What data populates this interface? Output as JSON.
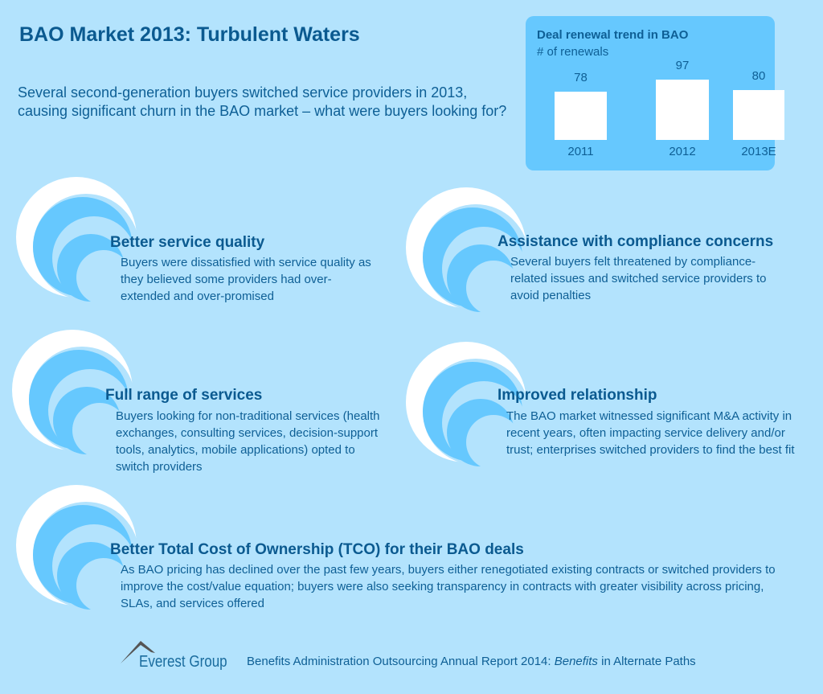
{
  "title": "BAO Market 2013: Turbulent Waters",
  "intro": "Several second-generation buyers switched service providers in 2013, causing significant churn in the BAO market – what were buyers looking for?",
  "colors": {
    "background": "#b3e3fd",
    "chart_box": "#66c8fe",
    "text": "#0e5f95",
    "wave": "#66c8fe"
  },
  "chart_data": {
    "type": "bar",
    "title": "Deal renewal trend in BAO",
    "ylabel": "# of renewals",
    "categories": [
      "2011",
      "2012",
      "2013E"
    ],
    "values": [
      78,
      97,
      80
    ],
    "grid": false
  },
  "items": [
    {
      "heading": "Better service quality",
      "text": "Buyers were dissatisfied with service quality as they believed some providers had over-extended and over-promised",
      "icon": "wave-icon"
    },
    {
      "heading": "Assistance with compliance concerns",
      "text": "Several buyers felt threatened by compliance-related issues and switched service providers to avoid penalties",
      "icon": "wave-icon"
    },
    {
      "heading": "Full range of services",
      "text": "Buyers looking for non-traditional services (health exchanges, consulting services, decision-support tools, analytics, mobile applications) opted to switch providers",
      "icon": "wave-icon"
    },
    {
      "heading": "Improved relationship",
      "text": "The BAO market witnessed significant M&A activity in recent years, often impacting service delivery and/or trust; enterprises switched providers to find the best fit",
      "icon": "wave-icon"
    },
    {
      "heading": "Better Total Cost of Ownership (TCO) for their BAO deals",
      "text": "As BAO pricing has declined over the past few years, buyers either renegotiated existing contracts or switched providers to improve the cost/value equation; buyers were also seeking transparency in contracts with greater visibility across pricing, SLAs, and services offered",
      "icon": "wave-icon"
    }
  ],
  "footer": {
    "logo": "Everest Group",
    "report_prefix": "Benefits Administration Outsourcing Annual Report 2014: ",
    "report_italic": "Benefits",
    "report_suffix": " in Alternate Paths"
  }
}
